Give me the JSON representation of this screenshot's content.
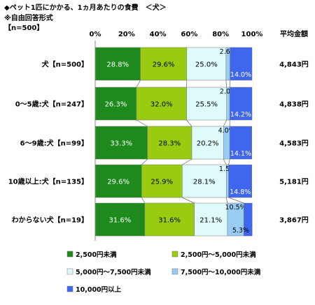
{
  "header": {
    "title": "◆ペット1匹にかかる、1ヵ月あたりの食費　＜犬＞",
    "note": "※自由回答形式",
    "sample": "【n=500】"
  },
  "chart_data": {
    "type": "bar",
    "orientation": "horizontal",
    "stacked_percent": true,
    "categories": [
      "犬【n=500】",
      "0～5歳:犬【n=247】",
      "6～9歳:犬【n=99】",
      "10歳以上:犬【n=135】",
      "わからない犬【n=19】"
    ],
    "x_ticks": [
      "0%",
      "20%",
      "40%",
      "60%",
      "80%",
      "100%"
    ],
    "xlim": [
      0,
      100
    ],
    "series": [
      {
        "name": "2,500円未満",
        "color": "#1e8a1e",
        "values": [
          28.8,
          26.3,
          33.3,
          29.6,
          31.6
        ],
        "labels": [
          "28.8%",
          "26.3%",
          "33.3%",
          "29.6%",
          "31.6%"
        ]
      },
      {
        "name": "2,500円～5,000円未満",
        "color": "#99cc11",
        "values": [
          29.6,
          32.0,
          28.3,
          25.9,
          31.6
        ],
        "labels": [
          "29.6%",
          "32.0%",
          "28.3%",
          "25.9%",
          "31.6%"
        ]
      },
      {
        "name": "5,000円～7,500円未満",
        "color": "#dffafa",
        "values": [
          25.0,
          25.5,
          20.2,
          28.1,
          21.1
        ],
        "labels": [
          "25.0%",
          "25.5%",
          "20.2%",
          "28.1%",
          "21.1%"
        ]
      },
      {
        "name": "7,500円～10,000円未満",
        "color": "#99ccf2",
        "values": [
          2.6,
          2.0,
          4.0,
          1.5,
          10.5
        ],
        "labels": [
          "2.6%",
          "2.0%",
          "4.0%",
          "1.5%",
          "10.5%"
        ]
      },
      {
        "name": "10,000円以上",
        "color": "#3e66ee",
        "values": [
          14.0,
          14.2,
          14.1,
          14.8,
          5.3
        ],
        "labels": [
          "14.0%",
          "14.2%",
          "14.1%",
          "14.8%",
          "5.3%"
        ]
      }
    ],
    "average": {
      "label": "平均金額",
      "values": [
        "4,843円",
        "4,838円",
        "4,583円",
        "5,181円",
        "3,867円"
      ]
    },
    "legend_position": "bottom"
  }
}
